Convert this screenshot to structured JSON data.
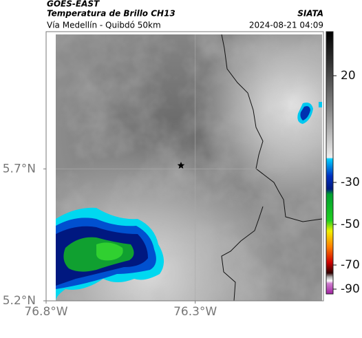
{
  "header": {
    "source": "GOES-EAST",
    "title": "Temperatura de Brillo CH13",
    "agency": "SIATA",
    "subtitle": "Vía Medellín - Quibdó 50km",
    "timestamp": "2024-08-21 04:09"
  },
  "map": {
    "xlim": [
      -76.8,
      -75.87
    ],
    "ylim": [
      5.2,
      6.22
    ],
    "xticks": [
      {
        "value": -76.8,
        "label": "76.8°W"
      },
      {
        "value": -76.3,
        "label": "76.3°W"
      }
    ],
    "yticks": [
      {
        "value": 5.7,
        "label": "5.7°N"
      },
      {
        "value": 5.2,
        "label": "5.2°N"
      }
    ],
    "grid": true
  },
  "colorbar": {
    "ticks": [
      20,
      -30,
      -50,
      -70,
      -90
    ]
  }
}
